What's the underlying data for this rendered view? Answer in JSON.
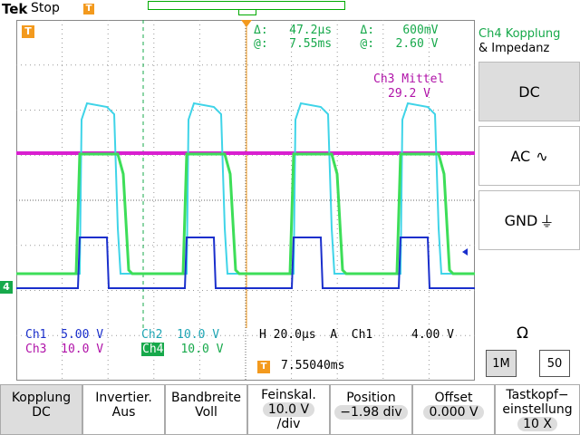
{
  "header": {
    "brand": "Tek",
    "status": "Stop",
    "trigger_marker": "T"
  },
  "cursors": {
    "row1": "Δ:   47.2µs    Δ:    600mV",
    "row2": "@:   7.55ms    @:   2.60 V"
  },
  "ch3_mean": {
    "label": "Ch3 Mittel",
    "value": "29.2 V"
  },
  "ground_markers": {
    "ch4": "4",
    "cursor": "T"
  },
  "scale": {
    "ch1": "Ch1  5.00 V",
    "ch2": "Ch2  10.0 V",
    "ch3": "Ch3  10.0 V",
    "ch4_label": "Ch4",
    "ch4_value": "10.0 V",
    "timebase": "H 20.0µs  A  Ch1",
    "trig_level": "4.00 V",
    "trig_pos": "7.55040ms"
  },
  "side_menu": {
    "title_line1": "Ch4 Kopplung",
    "title_line2": "& Impedanz",
    "dc": "DC",
    "ac": "AC",
    "gnd": "GND",
    "omega": "Ω",
    "imp_1m": "1M",
    "imp_50": "50"
  },
  "softkeys": [
    {
      "l1": "Kopplung",
      "l2": "DC"
    },
    {
      "l1": "Invertier.",
      "l2": "Aus"
    },
    {
      "l1": "Bandbreite",
      "l2": "Voll"
    },
    {
      "l1": "Feinskal.",
      "l2": "10.0 V",
      "l3": "/div"
    },
    {
      "l1": "Position",
      "l2": "−1.98 div"
    },
    {
      "l1": "Offset",
      "l2": "0.000 V"
    },
    {
      "l1": "Tastkopf−",
      "l2": "einstellung",
      "l3": "10 X"
    }
  ],
  "colors": {
    "ch1": "#1a2fcc",
    "ch2": "#1fa6b5",
    "ch3": "#b012a8",
    "ch4": "#17a94b",
    "trigger": "#f39a1e"
  }
}
